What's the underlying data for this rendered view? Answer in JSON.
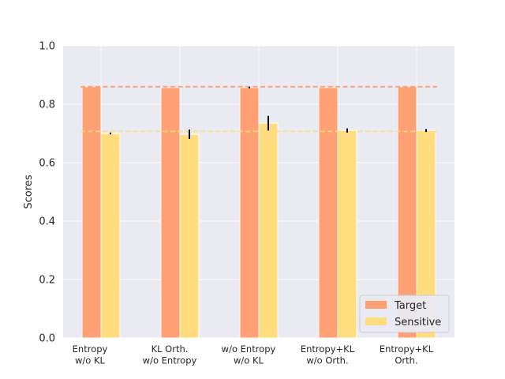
{
  "chart_data": {
    "type": "bar",
    "title": "",
    "xlabel": "",
    "ylabel": "Scores",
    "ylim": [
      0.0,
      1.0
    ],
    "yticks": [
      "0.0",
      "0.2",
      "0.4",
      "0.6",
      "0.8",
      "1.0"
    ],
    "grid": true,
    "legend_position": "bottom-right",
    "categories": [
      [
        "Entropy",
        "w/o KL"
      ],
      [
        "KL Orth.",
        "w/o Entropy"
      ],
      [
        "w/o Entropy",
        "w/o KL"
      ],
      [
        "Entropy+KL",
        "w/o Orth."
      ],
      [
        "Entropy+KL",
        "Orth."
      ]
    ],
    "series": [
      {
        "name": "Target",
        "color": "#FF9F74",
        "values": [
          0.86,
          0.857,
          0.857,
          0.857,
          0.86
        ],
        "errors": [
          0.0,
          0.0,
          0.003,
          0.0,
          0.0
        ]
      },
      {
        "name": "Sensitive",
        "color": "#FFDC7E",
        "values": [
          0.7,
          0.697,
          0.735,
          0.71,
          0.71
        ],
        "errors": [
          0.003,
          0.016,
          0.025,
          0.007,
          0.005
        ]
      }
    ],
    "reference_lines": [
      {
        "value": 0.86,
        "color": "#FF9F74",
        "style": "dashed"
      },
      {
        "value": 0.707,
        "color": "#FFDC7E",
        "style": "dashed"
      }
    ]
  }
}
